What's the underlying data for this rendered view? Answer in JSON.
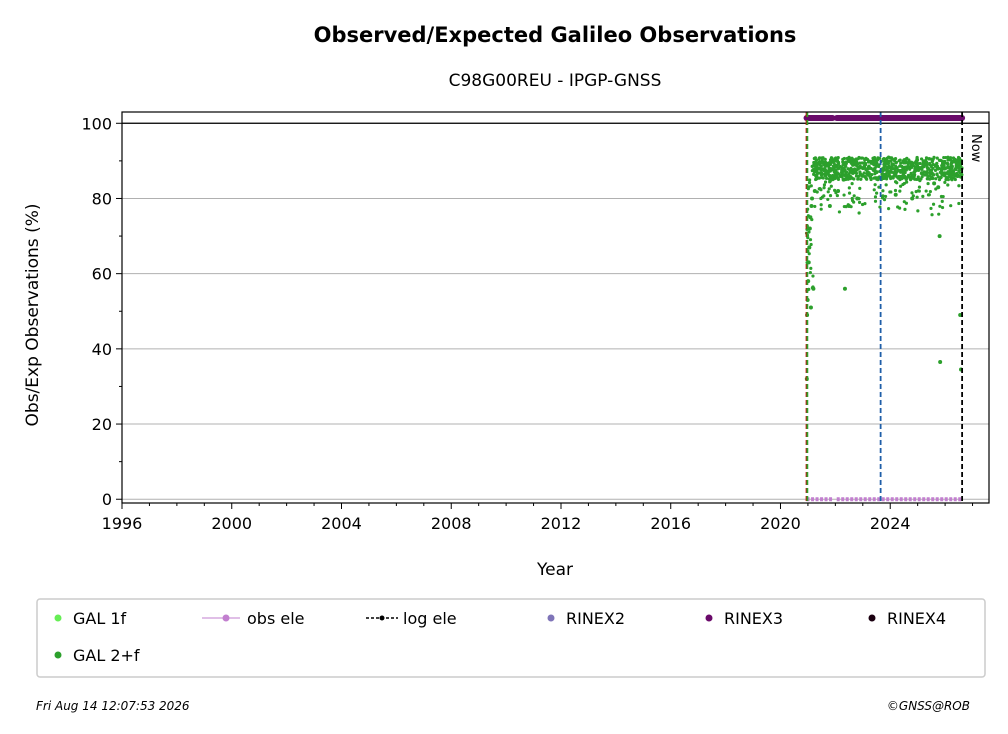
{
  "chart_data": {
    "type": "scatter",
    "title": "Observed/Expected Galileo Observations",
    "subtitle": "C98G00REU - IPGP-GNSS",
    "xlabel": "Year",
    "ylabel": "Obs/Exp Observations (%)",
    "xlim": [
      1996,
      2027.6
    ],
    "ylim": [
      -1,
      103
    ],
    "xticks": [
      1996,
      2000,
      2004,
      2008,
      2012,
      2016,
      2020,
      2024
    ],
    "yticks": [
      0,
      20,
      40,
      60,
      80,
      100
    ],
    "grid": "horizontal",
    "reference_line_y": 100,
    "vlines": [
      {
        "x": 2020.95,
        "color": "#cc0000",
        "style": "dashed"
      },
      {
        "x": 2020.98,
        "color": "#2ca02c",
        "style": "dashed"
      },
      {
        "x": 2023.65,
        "color": "#1f5fa8",
        "style": "dashed"
      },
      {
        "x": 2026.62,
        "color": "#000000",
        "style": "dashed",
        "label": "Now"
      }
    ],
    "series": [
      {
        "name": "GAL 1f",
        "color": "#66ee55",
        "marker": "dot",
        "points": []
      },
      {
        "name": "GAL 2+f",
        "color": "#2ca02c",
        "marker": "dot",
        "x_range": [
          2020.95,
          2026.62
        ],
        "points": [
          [
            2020.96,
            32
          ],
          [
            2020.97,
            49
          ],
          [
            2020.99,
            53
          ],
          [
            2021.01,
            58
          ],
          [
            2021.03,
            63
          ],
          [
            2021.05,
            67
          ],
          [
            2021.07,
            72
          ],
          [
            2021.09,
            75
          ],
          [
            2021.11,
            51
          ],
          [
            2021.13,
            78
          ],
          [
            2021.15,
            80
          ],
          [
            2021.2,
            56
          ],
          [
            2021.25,
            82
          ],
          [
            2021.3,
            86
          ],
          [
            2021.4,
            88
          ],
          [
            2021.6,
            89
          ],
          [
            2021.8,
            78
          ],
          [
            2022.1,
            82
          ],
          [
            2022.3,
            85
          ],
          [
            2022.35,
            56
          ],
          [
            2022.5,
            78
          ],
          [
            2022.8,
            80
          ],
          [
            2023.0,
            86
          ],
          [
            2023.2,
            88
          ],
          [
            2023.5,
            87
          ],
          [
            2023.8,
            89
          ],
          [
            2024.1,
            89
          ],
          [
            2024.2,
            81
          ],
          [
            2024.5,
            90
          ],
          [
            2024.8,
            80
          ],
          [
            2025.0,
            88
          ],
          [
            2025.3,
            89
          ],
          [
            2025.6,
            84
          ],
          [
            2025.75,
            83
          ],
          [
            2025.8,
            70
          ],
          [
            2025.82,
            36.5
          ],
          [
            2026.0,
            88
          ],
          [
            2026.2,
            86
          ],
          [
            2026.4,
            90
          ],
          [
            2026.55,
            49
          ],
          [
            2026.58,
            34.5
          ],
          [
            2026.6,
            88
          ]
        ]
      }
    ],
    "rinex3_segments": [
      [
        2020.95,
        2021.9
      ],
      [
        2022.05,
        2026.62
      ]
    ],
    "obs_ele_segments": [
      [
        2020.95,
        2021.9
      ],
      [
        2022.05,
        2026.62
      ]
    ],
    "legend": {
      "placement": "bottom",
      "entries": [
        {
          "label": "GAL 1f",
          "color": "#66ee55",
          "kind": "dot"
        },
        {
          "label": "obs ele",
          "color": "#c27fcf",
          "kind": "line-dot"
        },
        {
          "label": "log ele",
          "color": "#000000",
          "kind": "dashed-dot"
        },
        {
          "label": "RINEX2",
          "color": "#7f74b8",
          "kind": "dot"
        },
        {
          "label": "RINEX3",
          "color": "#6a0a6a",
          "kind": "dot"
        },
        {
          "label": "RINEX4",
          "color": "#1a0010",
          "kind": "dot"
        },
        {
          "label": "GAL 2+f",
          "color": "#2ca02c",
          "kind": "dot"
        }
      ]
    }
  },
  "footer": {
    "timestamp": "Fri Aug 14 12:07:53 2026",
    "credit": "©GNSS@ROB"
  }
}
